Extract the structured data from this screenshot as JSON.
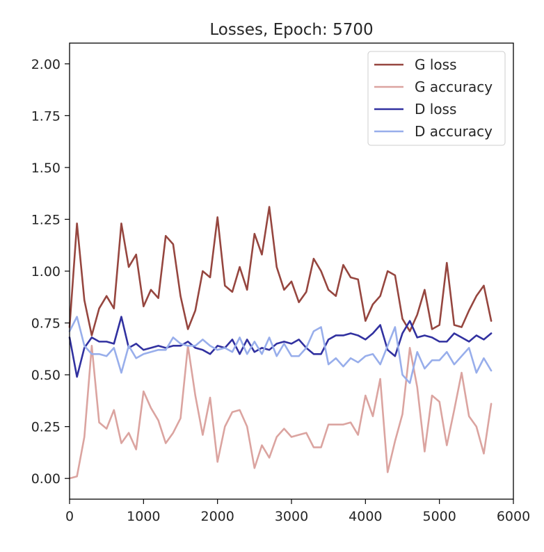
{
  "chart_data": {
    "type": "line",
    "title": "Losses, Epoch: 5700",
    "xlabel": "",
    "ylabel": "",
    "xlim": [
      0,
      6000
    ],
    "ylim": [
      -0.1,
      2.1
    ],
    "xticks": [
      0,
      1000,
      2000,
      3000,
      4000,
      5000,
      6000
    ],
    "xtick_labels": [
      "0",
      "1000",
      "2000",
      "3000",
      "4000",
      "5000",
      "6000"
    ],
    "yticks": [
      0.0,
      0.25,
      0.5,
      0.75,
      1.0,
      1.25,
      1.5,
      1.75,
      2.0
    ],
    "ytick_labels": [
      "0.00",
      "0.25",
      "0.50",
      "0.75",
      "1.00",
      "1.25",
      "1.50",
      "1.75",
      "2.00"
    ],
    "grid": false,
    "legend_position": "top-right",
    "x": [
      0,
      100,
      200,
      300,
      400,
      500,
      600,
      700,
      800,
      900,
      1000,
      1100,
      1200,
      1300,
      1400,
      1500,
      1600,
      1700,
      1800,
      1900,
      2000,
      2100,
      2200,
      2300,
      2400,
      2500,
      2600,
      2700,
      2800,
      2900,
      3000,
      3100,
      3200,
      3300,
      3400,
      3500,
      3600,
      3700,
      3800,
      3900,
      4000,
      4100,
      4200,
      4300,
      4400,
      4500,
      4600,
      4700,
      4800,
      4900,
      5000,
      5100,
      5200,
      5300,
      5400,
      5500,
      5600,
      5700
    ],
    "series": [
      {
        "name": "G loss",
        "color": "#96463f",
        "values": [
          0.73,
          1.23,
          0.86,
          0.69,
          0.82,
          0.88,
          0.82,
          1.23,
          1.02,
          1.08,
          0.83,
          0.91,
          0.87,
          1.17,
          1.13,
          0.88,
          0.72,
          0.81,
          1.0,
          0.97,
          1.26,
          0.93,
          0.9,
          1.02,
          0.91,
          1.18,
          1.08,
          1.31,
          1.02,
          0.91,
          0.95,
          0.85,
          0.9,
          1.06,
          1.0,
          0.91,
          0.88,
          1.03,
          0.97,
          0.96,
          0.76,
          0.84,
          0.88,
          1.0,
          0.98,
          0.77,
          0.71,
          0.79,
          0.91,
          0.72,
          0.74,
          1.04,
          0.74,
          0.73,
          0.81,
          0.88,
          0.93,
          0.76
        ]
      },
      {
        "name": "G accuracy",
        "color": "#dba4a0",
        "values": [
          0.0,
          0.01,
          0.2,
          0.64,
          0.27,
          0.24,
          0.33,
          0.17,
          0.22,
          0.14,
          0.42,
          0.34,
          0.28,
          0.17,
          0.22,
          0.29,
          0.64,
          0.4,
          0.21,
          0.39,
          0.08,
          0.25,
          0.32,
          0.33,
          0.25,
          0.05,
          0.16,
          0.1,
          0.2,
          0.24,
          0.2,
          0.21,
          0.22,
          0.15,
          0.15,
          0.26,
          0.26,
          0.26,
          0.27,
          0.21,
          0.4,
          0.3,
          0.48,
          0.03,
          0.18,
          0.31,
          0.63,
          0.44,
          0.13,
          0.4,
          0.37,
          0.16,
          0.33,
          0.51,
          0.3,
          0.25,
          0.12,
          0.36
        ]
      },
      {
        "name": "D loss",
        "color": "#3131a0",
        "values": [
          0.68,
          0.49,
          0.63,
          0.68,
          0.66,
          0.66,
          0.65,
          0.78,
          0.63,
          0.65,
          0.62,
          0.63,
          0.64,
          0.63,
          0.64,
          0.64,
          0.66,
          0.63,
          0.62,
          0.6,
          0.64,
          0.63,
          0.67,
          0.6,
          0.67,
          0.61,
          0.63,
          0.62,
          0.65,
          0.66,
          0.65,
          0.67,
          0.63,
          0.6,
          0.6,
          0.67,
          0.69,
          0.69,
          0.7,
          0.69,
          0.67,
          0.7,
          0.74,
          0.62,
          0.59,
          0.7,
          0.76,
          0.68,
          0.69,
          0.68,
          0.66,
          0.66,
          0.7,
          0.68,
          0.66,
          0.69,
          0.67,
          0.7
        ]
      },
      {
        "name": "D accuracy",
        "color": "#98aeeb",
        "values": [
          0.71,
          0.78,
          0.64,
          0.6,
          0.6,
          0.59,
          0.63,
          0.51,
          0.64,
          0.58,
          0.6,
          0.61,
          0.62,
          0.62,
          0.68,
          0.65,
          0.64,
          0.64,
          0.67,
          0.64,
          0.62,
          0.63,
          0.61,
          0.68,
          0.6,
          0.66,
          0.6,
          0.68,
          0.59,
          0.65,
          0.59,
          0.59,
          0.63,
          0.71,
          0.73,
          0.55,
          0.58,
          0.54,
          0.58,
          0.56,
          0.59,
          0.6,
          0.55,
          0.64,
          0.73,
          0.5,
          0.46,
          0.61,
          0.53,
          0.57,
          0.57,
          0.61,
          0.55,
          0.59,
          0.63,
          0.51,
          0.58,
          0.52
        ]
      }
    ]
  }
}
